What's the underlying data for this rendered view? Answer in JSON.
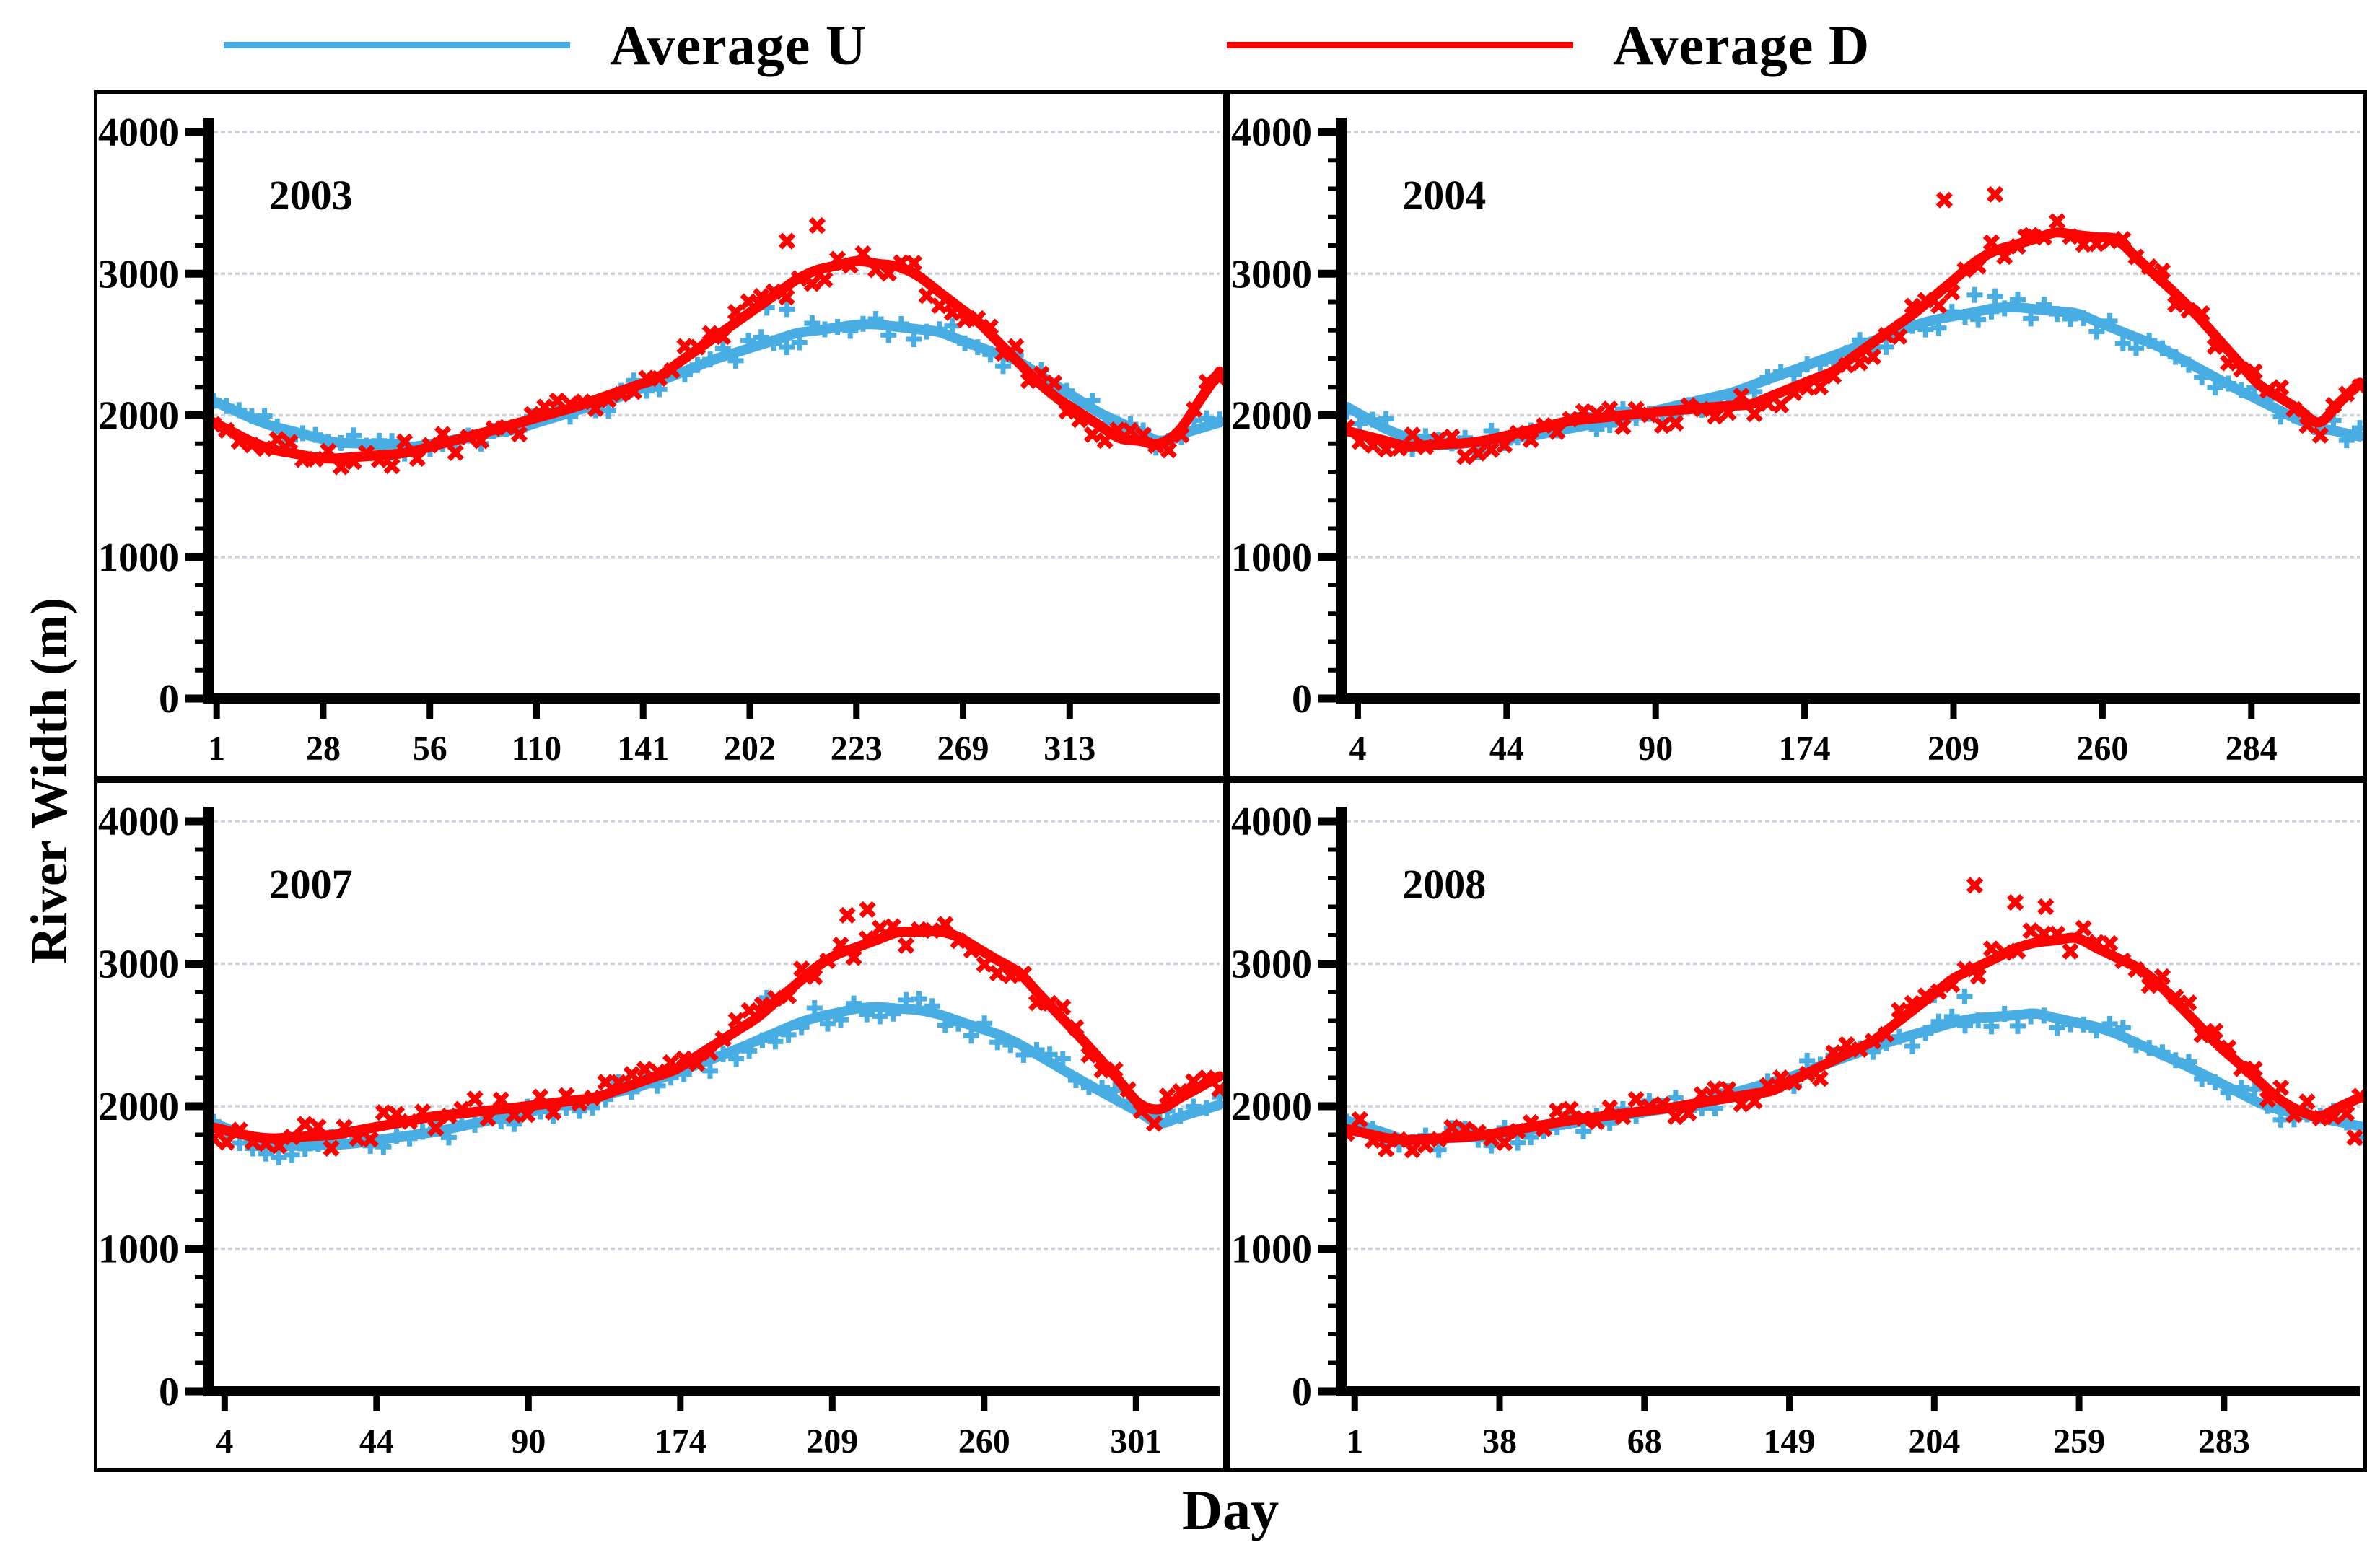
{
  "figure": {
    "y_axis_label": "River Width (m)",
    "x_axis_label": "Day",
    "background_color": "#ffffff",
    "axis_color": "#000000",
    "grid_color": "#c7cdd9",
    "legend": [
      {
        "label": "Average U",
        "color": "#47ade3",
        "marker": "plus"
      },
      {
        "label": "Average D",
        "color": "#fb0301",
        "marker": "x"
      }
    ]
  },
  "chart_data": [
    {
      "type": "scatter",
      "title": "2003",
      "ylim": [
        0,
        4000
      ],
      "y_ticks": [
        0,
        1000,
        2000,
        3000,
        4000
      ],
      "y_minor_step": 200,
      "grid": true,
      "x_tick_labels": [
        "1",
        "28",
        "56",
        "110",
        "141",
        "202",
        "223",
        "269",
        "313"
      ],
      "x_tick_frac_start": 0.003,
      "x_tick_frac_step": 0.106,
      "series": [
        {
          "name": "Average U",
          "color": "#47ade3",
          "marker": "plus",
          "jitter": 80,
          "n_markers": 80,
          "seed": 11,
          "curve": [
            [
              0,
              2100
            ],
            [
              0.05,
              1940
            ],
            [
              0.12,
              1810
            ],
            [
              0.2,
              1780
            ],
            [
              0.3,
              1900
            ],
            [
              0.4,
              2120
            ],
            [
              0.5,
              2400
            ],
            [
              0.58,
              2580
            ],
            [
              0.65,
              2650
            ],
            [
              0.72,
              2590
            ],
            [
              0.8,
              2380
            ],
            [
              0.88,
              2020
            ],
            [
              0.94,
              1820
            ],
            [
              1,
              1950
            ]
          ],
          "outliers": [
            [
              0.55,
              2760
            ],
            [
              0.57,
              2750
            ]
          ]
        },
        {
          "name": "Average D",
          "color": "#fb0301",
          "marker": "x",
          "jitter": 100,
          "n_markers": 80,
          "seed": 21,
          "curve": [
            [
              0,
              1950
            ],
            [
              0.05,
              1770
            ],
            [
              0.11,
              1690
            ],
            [
              0.19,
              1730
            ],
            [
              0.28,
              1900
            ],
            [
              0.36,
              2060
            ],
            [
              0.44,
              2260
            ],
            [
              0.52,
              2660
            ],
            [
              0.59,
              3010
            ],
            [
              0.64,
              3090
            ],
            [
              0.69,
              3040
            ],
            [
              0.76,
              2660
            ],
            [
              0.83,
              2160
            ],
            [
              0.9,
              1840
            ],
            [
              0.95,
              1790
            ],
            [
              1,
              2310
            ]
          ],
          "outliers": [
            [
              0.57,
              3230
            ],
            [
              0.6,
              3340
            ]
          ]
        }
      ]
    },
    {
      "type": "scatter",
      "title": "2004",
      "ylim": [
        0,
        4000
      ],
      "y_ticks": [
        0,
        1000,
        2000,
        3000,
        4000
      ],
      "y_minor_step": 200,
      "grid": true,
      "x_tick_labels": [
        "4",
        "44",
        "90",
        "174",
        "209",
        "260",
        "284"
      ],
      "x_tick_frac_start": 0.011,
      "x_tick_frac_step": 0.147,
      "series": [
        {
          "name": "Average U",
          "color": "#47ade3",
          "marker": "plus",
          "jitter": 80,
          "n_markers": 78,
          "seed": 12,
          "curve": [
            [
              0,
              2060
            ],
            [
              0.05,
              1860
            ],
            [
              0.1,
              1790
            ],
            [
              0.18,
              1850
            ],
            [
              0.28,
              1990
            ],
            [
              0.38,
              2160
            ],
            [
              0.48,
              2420
            ],
            [
              0.57,
              2660
            ],
            [
              0.65,
              2770
            ],
            [
              0.72,
              2720
            ],
            [
              0.8,
              2490
            ],
            [
              0.88,
              2180
            ],
            [
              0.95,
              1930
            ],
            [
              1,
              1850
            ]
          ],
          "outliers": [
            [
              0.62,
              2850
            ],
            [
              0.64,
              2840
            ]
          ]
        },
        {
          "name": "Average D",
          "color": "#fb0301",
          "marker": "x",
          "jitter": 100,
          "n_markers": 78,
          "seed": 22,
          "curve": [
            [
              0,
              1890
            ],
            [
              0.06,
              1780
            ],
            [
              0.13,
              1810
            ],
            [
              0.22,
              1960
            ],
            [
              0.3,
              2020
            ],
            [
              0.4,
              2080
            ],
            [
              0.48,
              2310
            ],
            [
              0.56,
              2720
            ],
            [
              0.63,
              3140
            ],
            [
              0.7,
              3290
            ],
            [
              0.76,
              3240
            ],
            [
              0.83,
              2780
            ],
            [
              0.9,
              2220
            ],
            [
              0.96,
              1950
            ],
            [
              1,
              2230
            ]
          ],
          "outliers": [
            [
              0.59,
              3520
            ],
            [
              0.64,
              3560
            ],
            [
              0.67,
              3260
            ]
          ]
        }
      ]
    },
    {
      "type": "scatter",
      "title": "2007",
      "ylim": [
        0,
        4000
      ],
      "y_ticks": [
        0,
        1000,
        2000,
        3000,
        4000
      ],
      "y_minor_step": 200,
      "grid": true,
      "x_tick_labels": [
        "4",
        "44",
        "90",
        "174",
        "209",
        "260",
        "301"
      ],
      "x_tick_frac_start": 0.011,
      "x_tick_frac_step": 0.151,
      "series": [
        {
          "name": "Average U",
          "color": "#47ade3",
          "marker": "plus",
          "jitter": 80,
          "n_markers": 78,
          "seed": 13,
          "curve": [
            [
              0,
              1880
            ],
            [
              0.06,
              1720
            ],
            [
              0.13,
              1730
            ],
            [
              0.22,
              1820
            ],
            [
              0.32,
              1970
            ],
            [
              0.42,
              2130
            ],
            [
              0.51,
              2370
            ],
            [
              0.59,
              2610
            ],
            [
              0.65,
              2700
            ],
            [
              0.71,
              2670
            ],
            [
              0.79,
              2480
            ],
            [
              0.87,
              2150
            ],
            [
              0.94,
              1880
            ],
            [
              1,
              2010
            ]
          ],
          "outliers": [
            [
              0.55,
              2760
            ]
          ]
        },
        {
          "name": "Average D",
          "color": "#fb0301",
          "marker": "x",
          "jitter": 95,
          "n_markers": 78,
          "seed": 23,
          "curve": [
            [
              0,
              1850
            ],
            [
              0.05,
              1770
            ],
            [
              0.12,
              1800
            ],
            [
              0.22,
              1930
            ],
            [
              0.3,
              1990
            ],
            [
              0.38,
              2060
            ],
            [
              0.46,
              2260
            ],
            [
              0.54,
              2620
            ],
            [
              0.61,
              3040
            ],
            [
              0.68,
              3220
            ],
            [
              0.73,
              3230
            ],
            [
              0.8,
              2940
            ],
            [
              0.87,
              2420
            ],
            [
              0.93,
              1940
            ],
            [
              1,
              2210
            ]
          ],
          "outliers": [
            [
              0.63,
              3340
            ],
            [
              0.65,
              3380
            ]
          ]
        }
      ]
    },
    {
      "type": "scatter",
      "title": "2008",
      "ylim": [
        0,
        4000
      ],
      "y_ticks": [
        0,
        1000,
        2000,
        3000,
        4000
      ],
      "y_minor_step": 200,
      "grid": true,
      "x_tick_labels": [
        "1",
        "38",
        "68",
        "149",
        "204",
        "259",
        "283"
      ],
      "x_tick_frac_start": 0.008,
      "x_tick_frac_step": 0.143,
      "series": [
        {
          "name": "Average U",
          "color": "#47ade3",
          "marker": "plus",
          "jitter": 80,
          "n_markers": 78,
          "seed": 14,
          "curve": [
            [
              0,
              1900
            ],
            [
              0.06,
              1760
            ],
            [
              0.14,
              1790
            ],
            [
              0.24,
              1900
            ],
            [
              0.34,
              2010
            ],
            [
              0.44,
              2210
            ],
            [
              0.53,
              2440
            ],
            [
              0.61,
              2610
            ],
            [
              0.68,
              2650
            ],
            [
              0.75,
              2540
            ],
            [
              0.83,
              2280
            ],
            [
              0.91,
              1990
            ],
            [
              1,
              1860
            ]
          ],
          "outliers": [
            [
              0.58,
              2780
            ],
            [
              0.61,
              2770
            ]
          ]
        },
        {
          "name": "Average D",
          "color": "#fb0301",
          "marker": "x",
          "jitter": 95,
          "n_markers": 78,
          "seed": 24,
          "curve": [
            [
              0,
              1840
            ],
            [
              0.05,
              1760
            ],
            [
              0.13,
              1790
            ],
            [
              0.22,
              1900
            ],
            [
              0.32,
              1990
            ],
            [
              0.42,
              2110
            ],
            [
              0.52,
              2460
            ],
            [
              0.6,
              2900
            ],
            [
              0.67,
              3140
            ],
            [
              0.72,
              3180
            ],
            [
              0.79,
              2940
            ],
            [
              0.86,
              2430
            ],
            [
              0.93,
              1990
            ],
            [
              0.96,
              1930
            ],
            [
              1,
              2060
            ]
          ],
          "outliers": [
            [
              0.62,
              3550
            ],
            [
              0.66,
              3430
            ],
            [
              0.69,
              3400
            ],
            [
              0.995,
              1780
            ]
          ]
        }
      ]
    }
  ]
}
